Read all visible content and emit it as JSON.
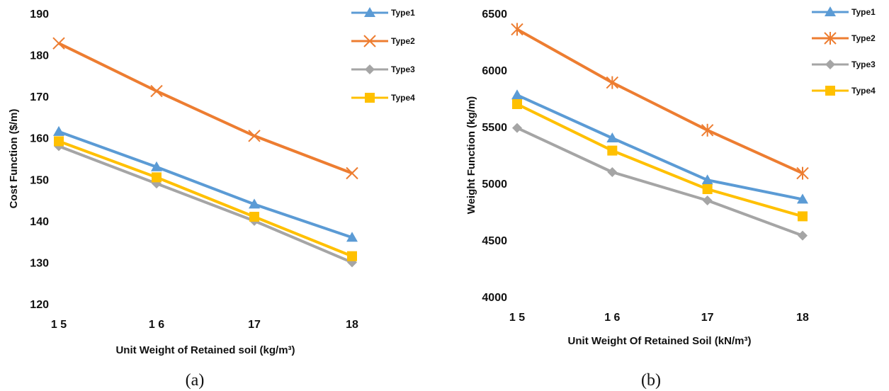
{
  "chart_data": [
    {
      "type": "line",
      "panel_label": "(a)",
      "xlabel": "Unit Weight of Retained soil (kg/m³)",
      "ylabel": "Cost Function ($/m)",
      "categories": [
        "1 5",
        "1 6",
        "17",
        "18"
      ],
      "x": [
        15,
        16,
        17,
        18
      ],
      "ylim": [
        120,
        190
      ],
      "yticks": [
        120,
        130,
        140,
        150,
        160,
        170,
        180,
        190
      ],
      "grid": false,
      "legend_position": "top-right",
      "series": [
        {
          "name": "Type1",
          "color": "#5b9bd5",
          "marker": "triangle",
          "values": [
            161.5,
            153,
            144,
            136
          ]
        },
        {
          "name": "Type2",
          "color": "#ed7d31",
          "marker": "x",
          "values": [
            182.8,
            171.3,
            160.5,
            151.5
          ]
        },
        {
          "name": "Type3",
          "color": "#a5a5a5",
          "marker": "diamond",
          "values": [
            158,
            149,
            140,
            130
          ]
        },
        {
          "name": "Type4",
          "color": "#ffc000",
          "marker": "square",
          "values": [
            159.2,
            150.5,
            141,
            131.5
          ]
        }
      ]
    },
    {
      "type": "line",
      "panel_label": "(b)",
      "xlabel": "Unit Weight Of Retained Soil (kN/m³)",
      "ylabel": "Weight Function (kg/m)",
      "categories": [
        "1 5",
        "1 6",
        "17",
        "18"
      ],
      "x": [
        15,
        16,
        17,
        18
      ],
      "ylim": [
        4000,
        6500
      ],
      "yticks": [
        4000,
        4500,
        5000,
        5500,
        6000,
        6500
      ],
      "grid": false,
      "legend_position": "top-right",
      "series": [
        {
          "name": "Type1",
          "color": "#5b9bd5",
          "marker": "triangle",
          "values": [
            5780,
            5400,
            5030,
            4860
          ]
        },
        {
          "name": "Type2",
          "color": "#ed7d31",
          "marker": "star",
          "values": [
            6360,
            5890,
            5470,
            5090
          ]
        },
        {
          "name": "Type3",
          "color": "#a5a5a5",
          "marker": "diamond",
          "values": [
            5490,
            5100,
            4850,
            4540
          ]
        },
        {
          "name": "Type4",
          "color": "#ffc000",
          "marker": "square",
          "values": [
            5700,
            5290,
            4950,
            4710
          ]
        }
      ]
    }
  ]
}
